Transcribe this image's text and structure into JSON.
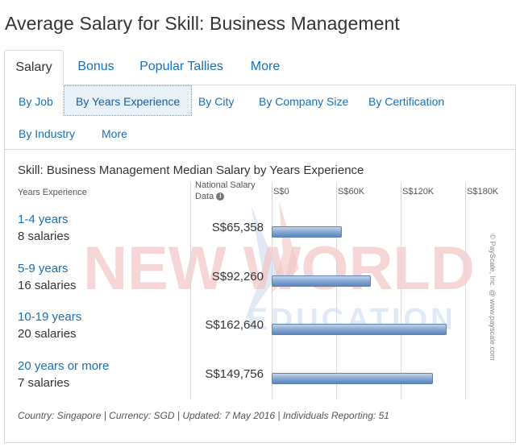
{
  "page_title": "Average Salary for Skill: Business Management",
  "tabs": [
    {
      "label": "Salary",
      "active": true
    },
    {
      "label": "Bonus",
      "active": false
    },
    {
      "label": "Popular Tallies",
      "active": false
    },
    {
      "label": "More",
      "active": false
    }
  ],
  "subnav": [
    {
      "label": "By Job",
      "active": false
    },
    {
      "label": "By Years Experience",
      "active": true
    },
    {
      "label": "By City",
      "active": false
    },
    {
      "label": "By Company Size",
      "active": false
    },
    {
      "label": "By Certification",
      "active": false
    },
    {
      "label": "By Industry",
      "active": false
    },
    {
      "label": "More",
      "active": false
    }
  ],
  "chart_data": {
    "type": "bar",
    "title": "Skill: Business Management Median Salary by Years Experience",
    "category_header": "Years Experience",
    "value_header_line1": "National Salary",
    "value_header_line2": "Data",
    "info_icon": "info-icon",
    "xlim": [
      0,
      180000
    ],
    "ticks": [
      "S$0",
      "S$60K",
      "S$120K",
      "S$180K"
    ],
    "rows": [
      {
        "category": "1-4 years",
        "count": "8 salaries",
        "label": "S$65,358",
        "value": 65358
      },
      {
        "category": "5-9 years",
        "count": "16 salaries",
        "label": "S$92,260",
        "value": 92260
      },
      {
        "category": "10-19 years",
        "count": "20 salaries",
        "label": "S$162,640",
        "value": 162640
      },
      {
        "category": "20 years or more",
        "count": "7 salaries",
        "label": "S$149,756",
        "value": 149756
      }
    ],
    "bar_color": "#6a93c6"
  },
  "footer": "Country: Singapore | Currency: SGD | Updated: 7 May 2016 | Individuals Reporting: 51",
  "side_credit": "© PayScale, Inc. @ www.payscale.com",
  "watermark": {
    "line1": "NEW WORLD",
    "line2": "EDUCATION"
  }
}
